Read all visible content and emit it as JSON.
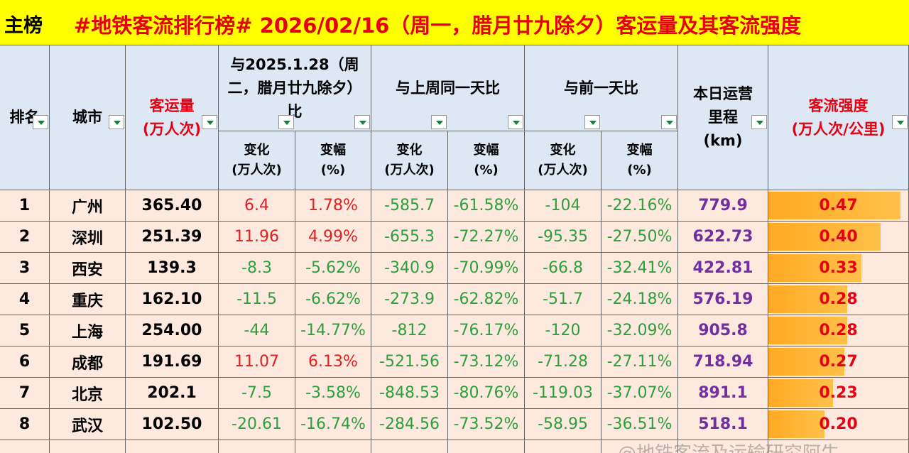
{
  "title_bar": {
    "tag": "主榜",
    "title": "#地铁客流排行榜# 2026/02/16（周一，腊月廿九除夕）客运量及其客流强度"
  },
  "table": {
    "header_top": [
      [
        "排名"
      ],
      [
        "城市"
      ],
      [
        "客运量",
        "(万人次)"
      ],
      [
        "与2025.1.28（周二，腊月廿九除夕）比"
      ],
      [
        "与上周同一天比"
      ],
      [
        "与前一天比"
      ],
      [
        "本日运营",
        "里程",
        "(km)"
      ],
      [
        "客流强度",
        "(万人次/公里)"
      ]
    ],
    "header_sub": [
      [
        "变化",
        "(万人次)"
      ],
      [
        "变幅",
        "(%)"
      ],
      [
        "变化",
        "(万人次)"
      ],
      [
        "变幅",
        "(%)"
      ],
      [
        "变化",
        "(万人次)"
      ],
      [
        "变幅",
        "(%)"
      ]
    ],
    "rows": [
      [
        "1",
        "广州",
        "365.40",
        "6.4",
        "1.78%",
        "-585.7",
        "-61.58%",
        "-104",
        "-22.16%",
        "779.9",
        "0.47"
      ],
      [
        "2",
        "深圳",
        "251.39",
        "11.96",
        "4.99%",
        "-655.3",
        "-72.27%",
        "-95.35",
        "-27.50%",
        "622.73",
        "0.40"
      ],
      [
        "3",
        "西安",
        "139.3",
        "-8.3",
        "-5.62%",
        "-340.9",
        "-70.99%",
        "-66.8",
        "-32.41%",
        "422.81",
        "0.33"
      ],
      [
        "4",
        "重庆",
        "162.10",
        "-11.5",
        "-6.62%",
        "-273.9",
        "-62.82%",
        "-51.7",
        "-24.18%",
        "576.19",
        "0.28"
      ],
      [
        "5",
        "上海",
        "254.00",
        "-44",
        "-14.77%",
        "-812",
        "-76.17%",
        "-120",
        "-32.09%",
        "905.8",
        "0.28"
      ],
      [
        "6",
        "成都",
        "191.69",
        "11.07",
        "6.13%",
        "-521.56",
        "-73.12%",
        "-71.28",
        "-27.11%",
        "718.94",
        "0.27"
      ],
      [
        "7",
        "北京",
        "202.1",
        "-7.5",
        "-3.58%",
        "-848.53",
        "-80.76%",
        "-119.03",
        "-37.07%",
        "891.1",
        "0.23"
      ],
      [
        "8",
        "武汉",
        "102.50",
        "-20.61",
        "-16.74%",
        "-284.56",
        "-73.52%",
        "-58.95",
        "-36.51%",
        "518.1",
        "0.20"
      ]
    ]
  },
  "watermark": "@地铁客流及运输研究阿牛"
}
